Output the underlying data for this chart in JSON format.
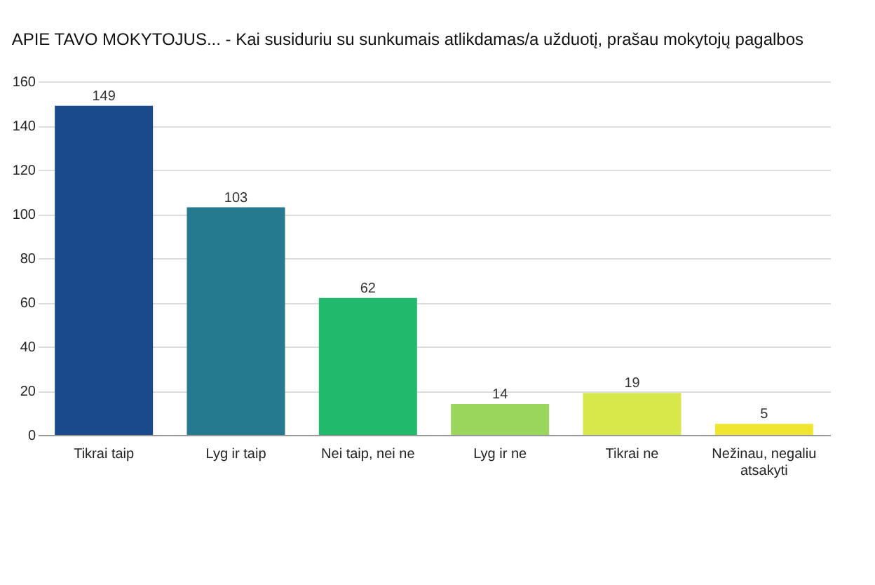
{
  "chart_data": {
    "type": "bar",
    "title": "APIE TAVO MOKYTOJUS... - Kai susiduriu su sunkumais atlikdamas/a užduotį,  prašau mokytojų pagalbos",
    "categories": [
      "Tikrai taip",
      "Lyg ir taip",
      "Nei taip, nei ne",
      "Lyg ir ne",
      "Tikrai ne",
      "Nežinau, negaliu atsakyti"
    ],
    "values": [
      149,
      103,
      62,
      14,
      19,
      5
    ],
    "colors": [
      "#1a4a8c",
      "#257a8f",
      "#21b96b",
      "#9bd65c",
      "#d6e84a",
      "#f0e531"
    ],
    "ylim": [
      0,
      160
    ],
    "yticks": [
      0,
      20,
      40,
      60,
      80,
      100,
      120,
      140,
      160
    ],
    "grid": "y",
    "data_labels": true,
    "legend": false
  }
}
